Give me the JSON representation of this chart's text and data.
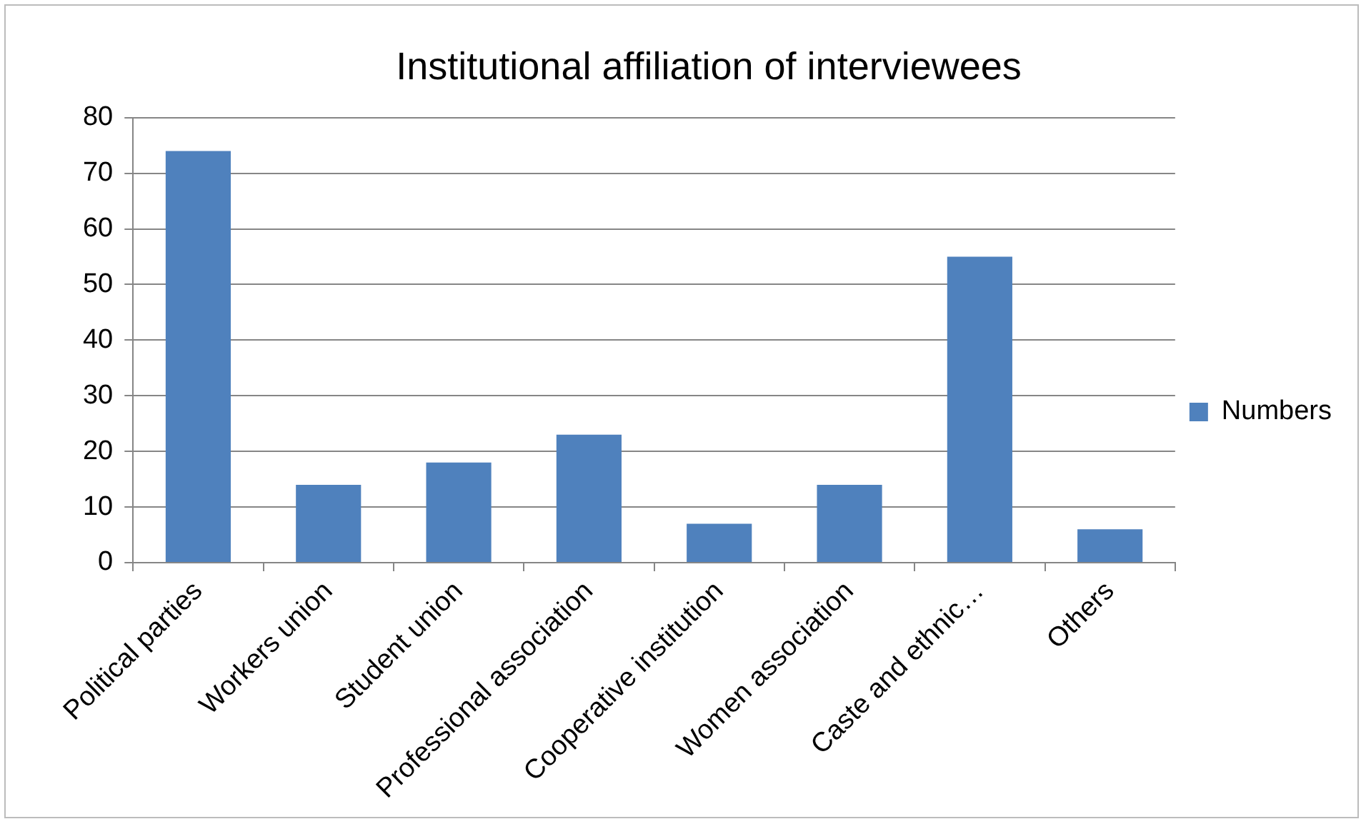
{
  "chart_data": {
    "type": "bar",
    "title": "Institutional affiliation of interviewees",
    "categories": [
      "Political parties",
      "Workers union",
      "Student union",
      "Professional association",
      "Cooperative institution",
      "Women association",
      "Caste and ethnic…",
      "Others"
    ],
    "series": [
      {
        "name": "Numbers",
        "color": "#4f81bd",
        "values": [
          74,
          14,
          18,
          23,
          7,
          14,
          55,
          6
        ]
      }
    ],
    "ylim": [
      0,
      80
    ],
    "yticks": [
      0,
      10,
      20,
      30,
      40,
      50,
      60,
      70,
      80
    ],
    "grid": "y",
    "legend": "right"
  }
}
